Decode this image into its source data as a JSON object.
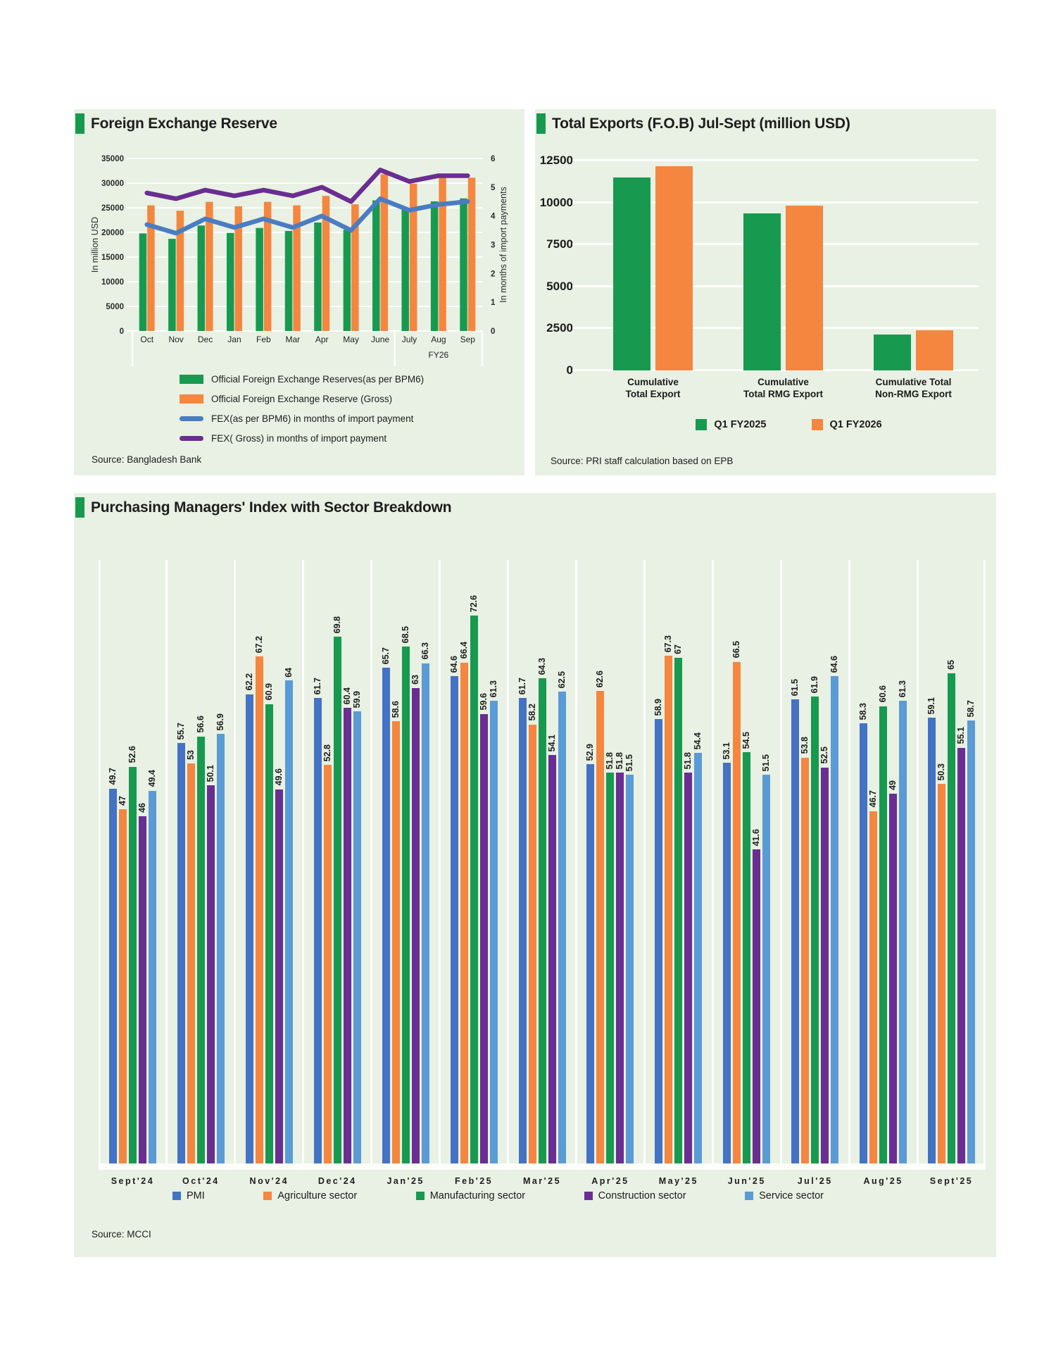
{
  "colors": {
    "panel_bg": "#e8f1e3",
    "accent_green": "#179a4f",
    "bar_green": "#179a4f",
    "bar_orange": "#f5863f",
    "pmi_blue": "#4472c4",
    "construction_purple": "#6a2d92",
    "service_blue": "#5b9bd5",
    "line_blue": "#4a7cc2",
    "line_purple": "#6a2d92"
  },
  "panels": {
    "fx": {
      "title": "Foreign Exchange Reserve",
      "source": "Source: Bangladesh Bank",
      "chart_data": {
        "type": "combo-bar-line",
        "categories": [
          "Oct",
          "Nov",
          "Dec",
          "Jan",
          "Feb",
          "Mar",
          "Apr",
          "May",
          "June",
          "July",
          "Aug",
          "Sep"
        ],
        "group_label": {
          "text": "FY26",
          "span": [
            9,
            11
          ]
        },
        "left_axis": {
          "title": "In million USD",
          "min": 0,
          "max": 35000,
          "step": 5000
        },
        "right_axis": {
          "title": "In months of import payments",
          "min": 0,
          "max": 6,
          "step": 1
        },
        "bar_series": [
          {
            "name": "Official Foreign Exchange Reserves(as per BPM6)",
            "color": "#179a4f",
            "axis": "left",
            "values": [
              19800,
              18700,
              21400,
              19900,
              20900,
              20300,
              22000,
              20500,
              26500,
              24800,
              26300,
              26900
            ]
          },
          {
            "name": "Official Foreign Exchange Reserve (Gross)",
            "color": "#f5863f",
            "axis": "left",
            "values": [
              25500,
              24400,
              26200,
              25300,
              26200,
              25500,
              27400,
              25700,
              31800,
              29900,
              31400,
              31100
            ]
          }
        ],
        "line_series": [
          {
            "name": "FEX(as per BPM6) in months of import payment",
            "color": "#4a7cc2",
            "axis": "right",
            "values": [
              3.7,
              3.4,
              3.9,
              3.6,
              3.9,
              3.6,
              4.0,
              3.5,
              4.6,
              4.2,
              4.4,
              4.5
            ]
          },
          {
            "name": "FEX( Gross) in months of import payment",
            "color": "#6a2d92",
            "axis": "right",
            "values": [
              4.8,
              4.6,
              4.9,
              4.7,
              4.9,
              4.7,
              5.0,
              4.5,
              5.6,
              5.2,
              5.4,
              5.4
            ]
          }
        ]
      }
    },
    "exports": {
      "title": "Total Exports (F.O.B) Jul-Sept (million USD)",
      "source": "Source: PRI staff calculation based on EPB",
      "chart_data": {
        "type": "bar",
        "categories": [
          [
            "Cumulative",
            "Total Export"
          ],
          [
            "Cumulative",
            "Total RMG Export"
          ],
          [
            "Cumulative Total",
            "Non-RMG Export"
          ]
        ],
        "series": [
          {
            "name": "Q1 FY2025",
            "color": "#179a4f",
            "values": [
              11500,
              9350,
              2150
            ]
          },
          {
            "name": "Q1 FY2026",
            "color": "#f5863f",
            "values": [
              12150,
              9800,
              2400
            ]
          }
        ],
        "ylim": [
          0,
          12500
        ],
        "step": 2500
      }
    },
    "pmi": {
      "title": "Purchasing Managers' Index with Sector Breakdown",
      "source": "Source: MCCI",
      "chart_data": {
        "type": "grouped-bar",
        "categories": [
          "Sept'24",
          "Oct'24",
          "Nov'24",
          "Dec'24",
          "Jan'25",
          "Feb'25",
          "Mar'25",
          "Apr'25",
          "May'25",
          "Jun'25",
          "Jul'25",
          "Aug'25",
          "Sept'25"
        ],
        "ylim": [
          0,
          80
        ],
        "data_labels": true,
        "series": [
          {
            "name": "PMI",
            "color": "#4472c4",
            "values": [
              49.7,
              55.7,
              62.2,
              61.7,
              65.7,
              64.6,
              61.7,
              52.9,
              58.9,
              53.1,
              61.5,
              58.3,
              59.1
            ]
          },
          {
            "name": "Agriculture sector",
            "color": "#f5863f",
            "values": [
              47,
              53,
              67.2,
              52.8,
              58.6,
              66.4,
              58.2,
              62.6,
              67.3,
              66.5,
              53.8,
              46.7,
              50.3
            ]
          },
          {
            "name": "Manufacturing sector",
            "color": "#179a4f",
            "values": [
              52.6,
              56.6,
              60.9,
              69.8,
              68.5,
              72.6,
              64.3,
              51.8,
              67,
              54.5,
              61.9,
              60.6,
              65
            ]
          },
          {
            "name": "Construction sector",
            "color": "#6a2d92",
            "values": [
              46,
              50.1,
              49.6,
              60.4,
              63,
              59.6,
              54.1,
              51.8,
              51.8,
              41.6,
              52.5,
              49,
              55.1
            ]
          },
          {
            "name": "Service sector",
            "color": "#5b9bd5",
            "values": [
              49.4,
              56.9,
              64,
              59.9,
              66.3,
              61.3,
              62.5,
              51.5,
              54.4,
              51.5,
              64.6,
              61.3,
              58.7
            ]
          }
        ]
      }
    }
  }
}
